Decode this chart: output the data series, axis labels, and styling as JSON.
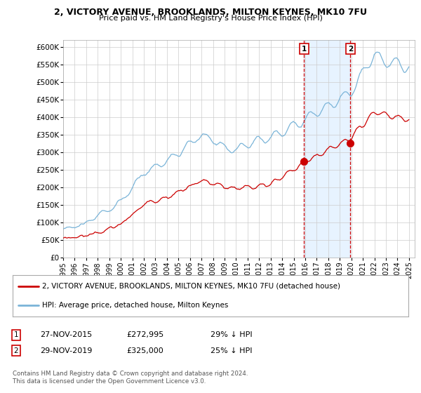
{
  "title_line1": "2, VICTORY AVENUE, BROOKLANDS, MILTON KEYNES, MK10 7FU",
  "title_line2": "Price paid vs. HM Land Registry's House Price Index (HPI)",
  "ylabel_ticks": [
    "£0",
    "£50K",
    "£100K",
    "£150K",
    "£200K",
    "£250K",
    "£300K",
    "£350K",
    "£400K",
    "£450K",
    "£500K",
    "£550K",
    "£600K"
  ],
  "ytick_values": [
    0,
    50000,
    100000,
    150000,
    200000,
    250000,
    300000,
    350000,
    400000,
    450000,
    500000,
    550000,
    600000
  ],
  "ylim": [
    0,
    620000
  ],
  "xlim_start": 1995.0,
  "xlim_end": 2025.5,
  "hpi_color": "#7ab4d8",
  "price_color": "#cc0000",
  "marker_color": "#cc0000",
  "dashed_line_color": "#cc0000",
  "shade_color": "#ddeeff",
  "sale1_x": 2015.9,
  "sale1_y": 272995,
  "sale2_x": 2019.92,
  "sale2_y": 325000,
  "legend_label1": "2, VICTORY AVENUE, BROOKLANDS, MILTON KEYNES, MK10 7FU (detached house)",
  "legend_label2": "HPI: Average price, detached house, Milton Keynes",
  "table_row1_num": "1",
  "table_row1_date": "27-NOV-2015",
  "table_row1_price": "£272,995",
  "table_row1_hpi": "29% ↓ HPI",
  "table_row2_num": "2",
  "table_row2_date": "29-NOV-2019",
  "table_row2_price": "£325,000",
  "table_row2_hpi": "25% ↓ HPI",
  "footnote": "Contains HM Land Registry data © Crown copyright and database right 2024.\nThis data is licensed under the Open Government Licence v3.0.",
  "bg_color": "#ffffff",
  "grid_color": "#cccccc",
  "box_color": "#cc0000"
}
